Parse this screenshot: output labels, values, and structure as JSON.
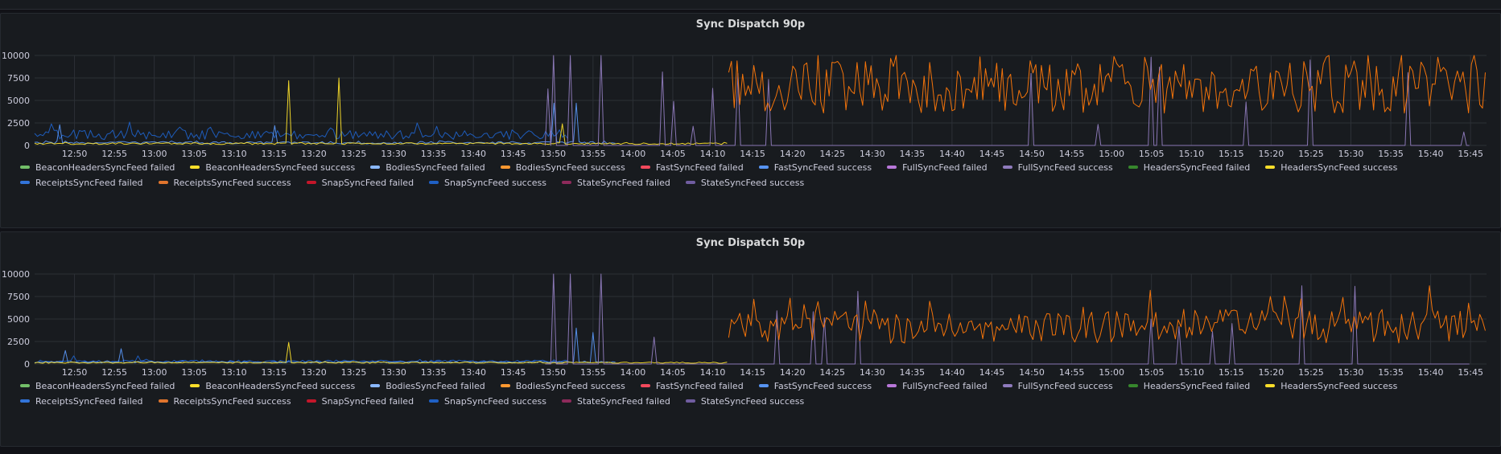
{
  "dashboard": {
    "colors": {
      "background": "#111217",
      "panel": "#181b1f",
      "grid": "#2c3036",
      "text": "#ccccdc"
    }
  },
  "panels": [
    {
      "title": "Sync Dispatch 90p",
      "chart_data": {
        "type": "line",
        "title": "Sync Dispatch 90p",
        "yticks": [
          "10000",
          "7500",
          "5000",
          "2500",
          "0"
        ],
        "yvalues": [
          10000,
          7500,
          5000,
          2500,
          0
        ],
        "ylim": [
          0,
          10000
        ],
        "xtick_labels": [
          "12:50",
          "12:55",
          "13:00",
          "13:05",
          "13:10",
          "13:15",
          "13:20",
          "13:25",
          "13:30",
          "13:35",
          "13:40",
          "13:45",
          "13:50",
          "13:55",
          "14:00",
          "14:05",
          "14:10",
          "14:15",
          "14:20",
          "14:25",
          "14:30",
          "14:35",
          "14:40",
          "14:45",
          "14:50",
          "14:55",
          "15:00",
          "15:05",
          "15:10",
          "15:15",
          "15:20",
          "15:25",
          "15:30",
          "15:35",
          "15:40",
          "15:45"
        ],
        "x_range": [
          "12:45",
          "15:47"
        ],
        "grid": true,
        "legend_placement": "bottom",
        "series": [
          {
            "name": "SnapSyncFeed success",
            "color": "#1f60c4",
            "x_range": [
              "12:45",
              "13:52"
            ],
            "typical": 1200,
            "peaks": [
              {
                "x": "12:47",
                "y": 2400
              },
              {
                "x": "12:57",
                "y": 2600
              },
              {
                "x": "13:33",
                "y": 2500
              }
            ]
          },
          {
            "name": "FastSyncFeed success",
            "color": "#5794f2",
            "x_range": [
              "12:45",
              "13:58"
            ],
            "typical": 300,
            "peaks": [
              {
                "x": "12:48",
                "y": 2300
              },
              {
                "x": "13:15",
                "y": 2200
              },
              {
                "x": "13:50",
                "y": 4700
              },
              {
                "x": "13:53",
                "y": 4700
              }
            ]
          },
          {
            "name": "BeaconHeadersSyncFeed success",
            "color": "#fade2a",
            "x_range": [
              "12:45",
              "14:12"
            ],
            "typical": 200,
            "peaks": [
              {
                "x": "13:17",
                "y": 7200
              },
              {
                "x": "13:23",
                "y": 7500
              },
              {
                "x": "13:51",
                "y": 2400
              }
            ]
          },
          {
            "name": "StateSyncFeed success",
            "color": "#8f7bbd",
            "x_range": [
              "13:49",
              "15:45"
            ],
            "typical": 0,
            "peaks": [
              {
                "x": "13:50",
                "y": 10000
              },
              {
                "x": "13:52",
                "y": 10000
              },
              {
                "x": "13:56",
                "y": 10000
              },
              {
                "x": "14:13",
                "y": 8000
              },
              {
                "x": "14:50",
                "y": 8000
              },
              {
                "x": "15:05",
                "y": 9800
              },
              {
                "x": "15:25",
                "y": 9500
              },
              {
                "x": "15:44",
                "y": 1500
              }
            ]
          },
          {
            "name": "ReceiptsSyncFeed success",
            "color": "#ff780a",
            "x_range": [
              "14:12",
              "15:47"
            ],
            "typical": 6500,
            "peaks": [
              {
                "x": "14:13",
                "y": 9400
              },
              {
                "x": "14:29",
                "y": 9300
              },
              {
                "x": "15:04",
                "y": 9800
              },
              {
                "x": "15:27",
                "y": 9800
              },
              {
                "x": "15:41",
                "y": 9800
              }
            ]
          }
        ]
      },
      "legend": [
        {
          "name": "BeaconHeadersSyncFeed failed",
          "color": "#73bf69"
        },
        {
          "name": "BeaconHeadersSyncFeed success",
          "color": "#fade2a"
        },
        {
          "name": "BodiesSyncFeed failed",
          "color": "#8ab8ff"
        },
        {
          "name": "BodiesSyncFeed success",
          "color": "#ff9830"
        },
        {
          "name": "FastSyncFeed failed",
          "color": "#f2495c"
        },
        {
          "name": "FastSyncFeed success",
          "color": "#5794f2"
        },
        {
          "name": "FullSyncFeed failed",
          "color": "#b877d9"
        },
        {
          "name": "FullSyncFeed success",
          "color": "#8f7bbd"
        },
        {
          "name": "HeadersSyncFeed failed",
          "color": "#37872d"
        },
        {
          "name": "HeadersSyncFeed success",
          "color": "#fade2a"
        },
        {
          "name": "ReceiptsSyncFeed failed",
          "color": "#3274d9"
        },
        {
          "name": "ReceiptsSyncFeed success",
          "color": "#e0752d"
        },
        {
          "name": "SnapSyncFeed failed",
          "color": "#c4162a"
        },
        {
          "name": "SnapSyncFeed success",
          "color": "#1f60c4"
        },
        {
          "name": "StateSyncFeed failed",
          "color": "#8e2a5b"
        },
        {
          "name": "StateSyncFeed success",
          "color": "#705da0"
        }
      ]
    },
    {
      "title": "Sync Dispatch 50p",
      "chart_data": {
        "type": "line",
        "title": "Sync Dispatch 50p",
        "yticks": [
          "10000",
          "7500",
          "5000",
          "2500",
          "0"
        ],
        "yvalues": [
          10000,
          7500,
          5000,
          2500,
          0
        ],
        "ylim": [
          0,
          10000
        ],
        "xtick_labels": [
          "12:50",
          "12:55",
          "13:00",
          "13:05",
          "13:10",
          "13:15",
          "13:20",
          "13:25",
          "13:30",
          "13:35",
          "13:40",
          "13:45",
          "13:50",
          "13:55",
          "14:00",
          "14:05",
          "14:10",
          "14:15",
          "14:20",
          "14:25",
          "14:30",
          "14:35",
          "14:40",
          "14:45",
          "14:50",
          "14:55",
          "15:00",
          "15:05",
          "15:10",
          "15:15",
          "15:20",
          "15:25",
          "15:30",
          "15:35",
          "15:40",
          "15:45"
        ],
        "x_range": [
          "12:45",
          "15:47"
        ],
        "grid": true,
        "legend_placement": "bottom",
        "series": [
          {
            "name": "SnapSyncFeed success",
            "color": "#1f60c4",
            "x_range": [
              "12:45",
              "13:52"
            ],
            "typical": 300,
            "peaks": [
              {
                "x": "12:50",
                "y": 900
              },
              {
                "x": "12:58",
                "y": 900
              }
            ]
          },
          {
            "name": "FastSyncFeed success",
            "color": "#5794f2",
            "x_range": [
              "12:45",
              "13:58"
            ],
            "typical": 200,
            "peaks": [
              {
                "x": "12:49",
                "y": 1500
              },
              {
                "x": "12:56",
                "y": 1700
              },
              {
                "x": "13:53",
                "y": 4000
              },
              {
                "x": "13:55",
                "y": 3500
              }
            ]
          },
          {
            "name": "BeaconHeadersSyncFeed success",
            "color": "#fade2a",
            "x_range": [
              "12:45",
              "14:12"
            ],
            "typical": 150,
            "peaks": [
              {
                "x": "13:17",
                "y": 2400
              }
            ]
          },
          {
            "name": "StateSyncFeed success",
            "color": "#8f7bbd",
            "x_range": [
              "13:49",
              "15:45"
            ],
            "typical": 0,
            "peaks": [
              {
                "x": "13:50",
                "y": 10000
              },
              {
                "x": "13:52",
                "y": 10000
              },
              {
                "x": "13:56",
                "y": 10000
              },
              {
                "x": "15:05",
                "y": 5000
              },
              {
                "x": "15:24",
                "y": 8700
              }
            ]
          },
          {
            "name": "ReceiptsSyncFeed success",
            "color": "#ff780a",
            "x_range": [
              "14:12",
              "15:47"
            ],
            "typical": 4200,
            "peaks": [
              {
                "x": "14:15",
                "y": 7200
              },
              {
                "x": "14:29",
                "y": 7000
              },
              {
                "x": "15:05",
                "y": 8200
              },
              {
                "x": "15:20",
                "y": 7500
              },
              {
                "x": "15:40",
                "y": 8700
              }
            ]
          }
        ]
      },
      "legend": [
        {
          "name": "BeaconHeadersSyncFeed failed",
          "color": "#73bf69"
        },
        {
          "name": "BeaconHeadersSyncFeed success",
          "color": "#fade2a"
        },
        {
          "name": "BodiesSyncFeed failed",
          "color": "#8ab8ff"
        },
        {
          "name": "BodiesSyncFeed success",
          "color": "#ff9830"
        },
        {
          "name": "FastSyncFeed failed",
          "color": "#f2495c"
        },
        {
          "name": "FastSyncFeed success",
          "color": "#5794f2"
        },
        {
          "name": "FullSyncFeed failed",
          "color": "#b877d9"
        },
        {
          "name": "FullSyncFeed success",
          "color": "#8f7bbd"
        },
        {
          "name": "HeadersSyncFeed failed",
          "color": "#37872d"
        },
        {
          "name": "HeadersSyncFeed success",
          "color": "#fade2a"
        },
        {
          "name": "ReceiptsSyncFeed failed",
          "color": "#3274d9"
        },
        {
          "name": "ReceiptsSyncFeed success",
          "color": "#e0752d"
        },
        {
          "name": "SnapSyncFeed failed",
          "color": "#c4162a"
        },
        {
          "name": "SnapSyncFeed success",
          "color": "#1f60c4"
        },
        {
          "name": "StateSyncFeed failed",
          "color": "#8e2a5b"
        },
        {
          "name": "StateSyncFeed success",
          "color": "#705da0"
        }
      ]
    }
  ]
}
